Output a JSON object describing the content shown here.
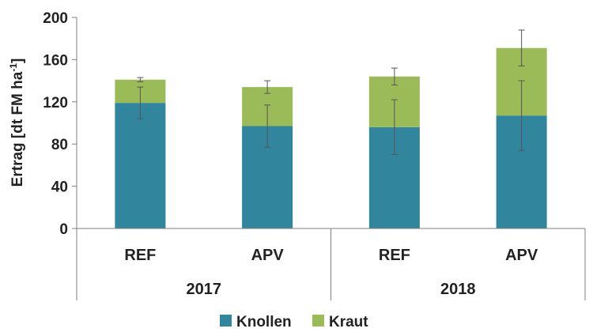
{
  "chart_data": {
    "type": "bar",
    "stacked": true,
    "ylabel_main": "Ertrag [dt FM ha",
    "ylabel_sup": "-1",
    "ylabel_end": "]",
    "ylim": [
      0,
      200
    ],
    "yticks": [
      0,
      40,
      80,
      120,
      160,
      200
    ],
    "grid": false,
    "legend_position": "bottom",
    "groups": [
      {
        "label": "2017",
        "categories": [
          "REF",
          "APV"
        ]
      },
      {
        "label": "2018",
        "categories": [
          "REF",
          "APV"
        ]
      }
    ],
    "categories": [
      "REF",
      "APV",
      "REF",
      "APV"
    ],
    "series": [
      {
        "name": "Knollen",
        "color": "#31859c",
        "values": [
          119,
          97,
          96,
          107
        ],
        "error": [
          15,
          20,
          26,
          33
        ]
      },
      {
        "name": "Kraut",
        "color": "#9bbb59",
        "values": [
          22,
          37,
          48,
          64
        ],
        "error": [
          2,
          6,
          8,
          17
        ]
      }
    ]
  }
}
